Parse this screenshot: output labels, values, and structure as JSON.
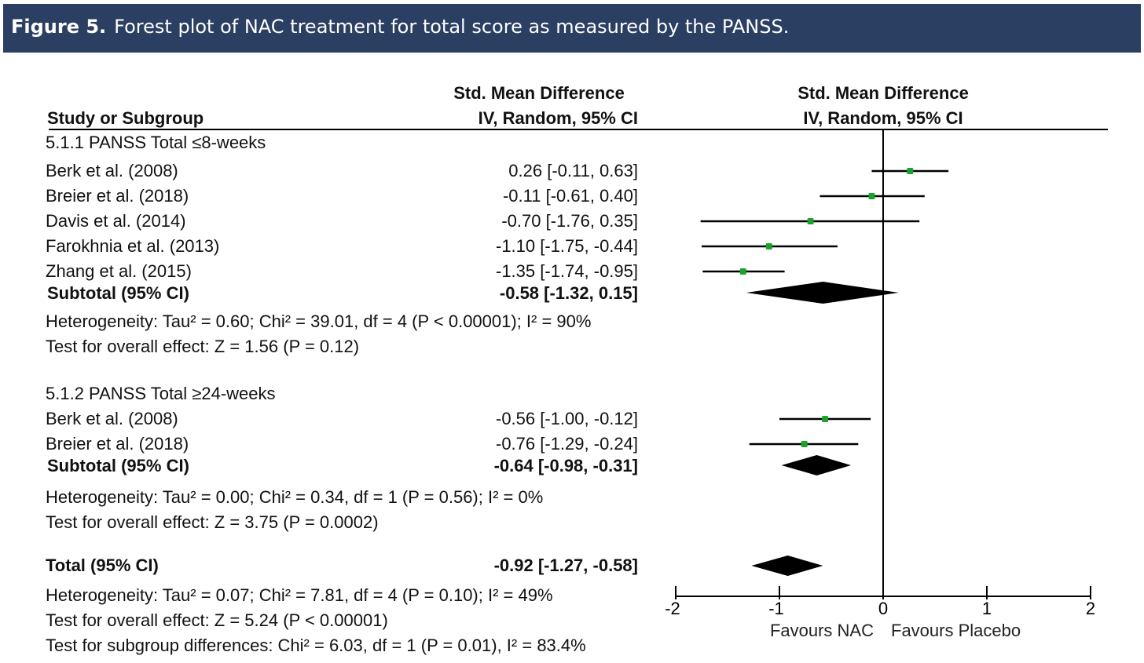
{
  "header": {
    "figure_label": "Figure 5.",
    "caption": "Forest plot of NAC treatment for total score as measured by the PANSS."
  },
  "columns": {
    "study": "Study or Subgroup",
    "effect_title": "Std. Mean Difference",
    "effect_method": "IV, Random, 95% CI",
    "plot_title": "Std. Mean Difference",
    "plot_method": "IV, Random, 95% CI"
  },
  "chart_data": {
    "type": "forest",
    "xlim": [
      -2,
      2
    ],
    "xticks": [
      "-2",
      "-1",
      "0",
      "1",
      "2"
    ],
    "xtick_values": [
      -2,
      -1,
      0,
      1,
      2
    ],
    "favours_left": "Favours NAC",
    "favours_right": "Favours Placebo",
    "point_color": "#1aa32a",
    "groups": [
      {
        "title": "5.1.1 PANSS Total ≤8-weeks",
        "studies": [
          {
            "name": "Berk et al. (2008)",
            "est": 0.26,
            "lo": -0.11,
            "hi": 0.63,
            "label": "0.26 [-0.11, 0.63]"
          },
          {
            "name": "Breier et al. (2018)",
            "est": -0.11,
            "lo": -0.61,
            "hi": 0.4,
            "label": "-0.11 [-0.61, 0.40]"
          },
          {
            "name": "Davis et al. (2014)",
            "est": -0.7,
            "lo": -1.76,
            "hi": 0.35,
            "label": "-0.70 [-1.76, 0.35]"
          },
          {
            "name": "Farokhnia et al. (2013)",
            "est": -1.1,
            "lo": -1.75,
            "hi": -0.44,
            "label": "-1.10 [-1.75, -0.44]"
          },
          {
            "name": "Zhang et al. (2015)",
            "est": -1.35,
            "lo": -1.74,
            "hi": -0.95,
            "label": "-1.35 [-1.74, -0.95]"
          }
        ],
        "subtotal": {
          "name": "Subtotal (95% CI)",
          "est": -0.58,
          "lo": -1.32,
          "hi": 0.15,
          "label": "-0.58 [-1.32, 0.15]"
        },
        "heterogeneity": "Heterogeneity: Tau² = 0.60; Chi² = 39.01, df = 4 (P < 0.00001); I² = 90%",
        "overall": "Test for overall effect: Z = 1.56 (P = 0.12)"
      },
      {
        "title": "5.1.2 PANSS Total ≥24-weeks",
        "studies": [
          {
            "name": "Berk et al. (2008)",
            "est": -0.56,
            "lo": -1.0,
            "hi": -0.12,
            "label": "-0.56 [-1.00, -0.12]"
          },
          {
            "name": "Breier et al. (2018)",
            "est": -0.76,
            "lo": -1.29,
            "hi": -0.24,
            "label": "-0.76 [-1.29, -0.24]"
          }
        ],
        "subtotal": {
          "name": "Subtotal (95% CI)",
          "est": -0.64,
          "lo": -0.98,
          "hi": -0.31,
          "label": "-0.64 [-0.98, -0.31]"
        },
        "heterogeneity": "Heterogeneity: Tau² = 0.00; Chi² = 0.34, df = 1 (P = 0.56); I² = 0%",
        "overall": "Test for overall effect: Z = 3.75 (P = 0.0002)"
      }
    ],
    "total": {
      "name": "Total (95% CI)",
      "est": -0.92,
      "lo": -1.27,
      "hi": -0.58,
      "label": "-0.92 [-1.27, -0.58]"
    },
    "total_heterogeneity": "Heterogeneity: Tau² = 0.07; Chi² = 7.81, df = 4 (P = 0.10); I² = 49%",
    "total_overall": "Test for overall effect: Z = 5.24 (P < 0.00001)",
    "subgroup_diff": "Test for subgroup differences: Chi² = 6.03, df = 1 (P = 0.01), I² = 83.4%"
  }
}
